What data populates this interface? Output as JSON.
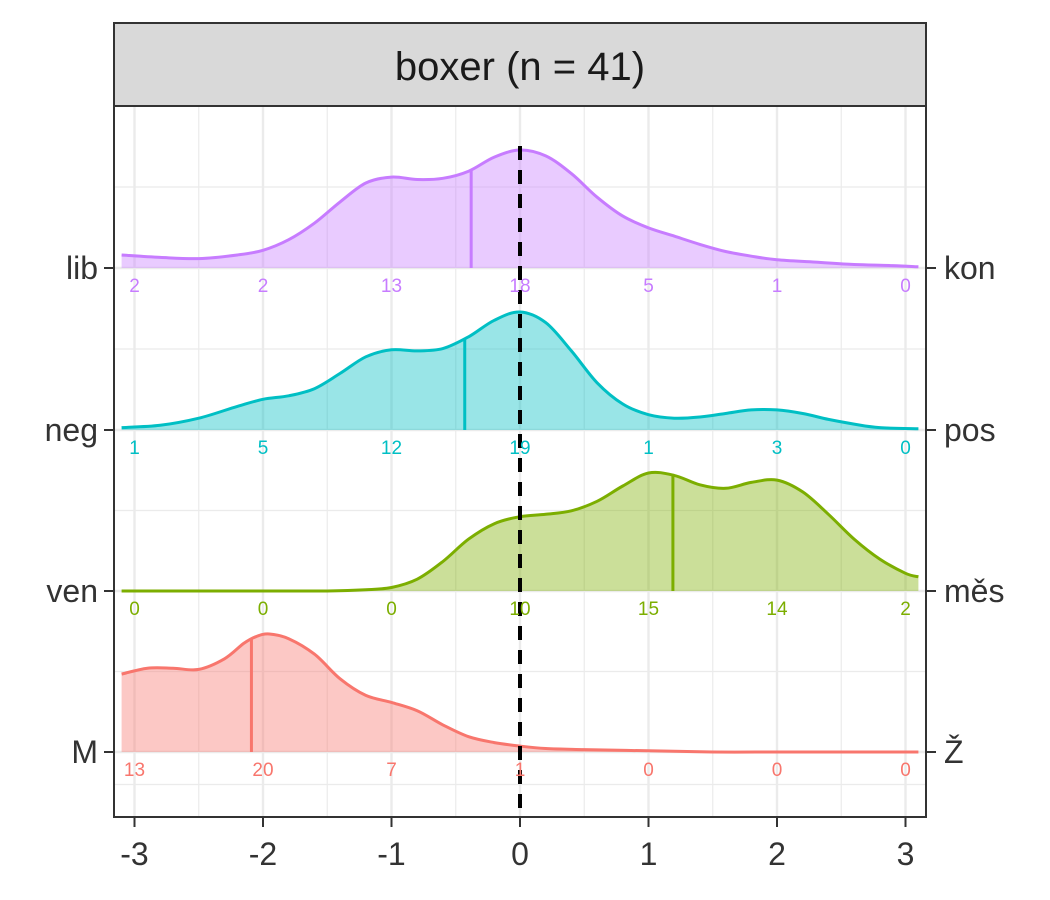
{
  "chart_data": {
    "type": "ridgeline",
    "title": "boxer (n = 41)",
    "xlabel": "",
    "ylabel": "",
    "xlim": [
      -3.1,
      3.1
    ],
    "x_ticks": [
      -3,
      -2,
      -1,
      0,
      1,
      2,
      3
    ],
    "x_tick_labels": [
      "-3",
      "-2",
      "-1",
      "0",
      "1",
      "2",
      "3"
    ],
    "reference_line_x": 0,
    "grid": true,
    "count_positions": [
      -3,
      -2,
      -1,
      0,
      1,
      2,
      3
    ],
    "rows": [
      {
        "left_label": "lib",
        "right_label": "kon",
        "color": "#C77CFF",
        "mean": -0.38,
        "counts": [
          "2",
          "2",
          "13",
          "18",
          "5",
          "1",
          "0"
        ],
        "density_x": [
          -3.1,
          -2.8,
          -2.5,
          -2.2,
          -2.0,
          -1.8,
          -1.6,
          -1.4,
          -1.2,
          -1.0,
          -0.8,
          -0.6,
          -0.4,
          -0.2,
          0.0,
          0.2,
          0.4,
          0.6,
          0.8,
          1.0,
          1.2,
          1.4,
          1.6,
          1.8,
          2.0,
          2.3,
          2.6,
          2.9,
          3.1
        ],
        "density_y": [
          0.11,
          0.09,
          0.08,
          0.11,
          0.15,
          0.24,
          0.38,
          0.56,
          0.72,
          0.77,
          0.75,
          0.76,
          0.82,
          0.94,
          1.0,
          0.95,
          0.8,
          0.6,
          0.44,
          0.34,
          0.27,
          0.2,
          0.14,
          0.1,
          0.07,
          0.05,
          0.03,
          0.02,
          0.01
        ]
      },
      {
        "left_label": "neg",
        "right_label": "pos",
        "color": "#00BFC4",
        "mean": -0.43,
        "counts": [
          "1",
          "5",
          "12",
          "19",
          "1",
          "3",
          "0"
        ],
        "density_x": [
          -3.1,
          -2.8,
          -2.5,
          -2.2,
          -2.0,
          -1.8,
          -1.6,
          -1.4,
          -1.2,
          -1.0,
          -0.8,
          -0.6,
          -0.4,
          -0.2,
          0.0,
          0.2,
          0.4,
          0.6,
          0.8,
          1.0,
          1.2,
          1.4,
          1.6,
          1.8,
          2.0,
          2.2,
          2.4,
          2.6,
          2.8,
          3.1
        ],
        "density_y": [
          0.02,
          0.04,
          0.1,
          0.2,
          0.26,
          0.29,
          0.35,
          0.48,
          0.62,
          0.68,
          0.67,
          0.69,
          0.79,
          0.93,
          1.0,
          0.91,
          0.67,
          0.4,
          0.22,
          0.13,
          0.1,
          0.11,
          0.14,
          0.17,
          0.17,
          0.14,
          0.09,
          0.05,
          0.02,
          0.01
        ]
      },
      {
        "left_label": "ven",
        "right_label": "měs",
        "color": "#7CAE00",
        "mean": 1.19,
        "counts": [
          "0",
          "0",
          "0",
          "10",
          "15",
          "14",
          "2"
        ],
        "density_x": [
          -3.1,
          -2.5,
          -2.0,
          -1.5,
          -1.2,
          -1.0,
          -0.8,
          -0.6,
          -0.4,
          -0.2,
          0.0,
          0.2,
          0.4,
          0.6,
          0.8,
          1.0,
          1.2,
          1.4,
          1.6,
          1.8,
          2.0,
          2.2,
          2.4,
          2.6,
          2.8,
          3.0,
          3.1
        ],
        "density_y": [
          0.0,
          0.0,
          0.0,
          0.0,
          0.01,
          0.03,
          0.1,
          0.25,
          0.44,
          0.57,
          0.63,
          0.65,
          0.68,
          0.76,
          0.89,
          1.0,
          0.98,
          0.9,
          0.87,
          0.92,
          0.94,
          0.84,
          0.65,
          0.44,
          0.27,
          0.15,
          0.12
        ]
      },
      {
        "left_label": "M",
        "right_label": "Ž",
        "color": "#F8766D",
        "mean": -2.09,
        "counts": [
          "13",
          "20",
          "7",
          "1",
          "0",
          "0",
          "0"
        ],
        "density_x": [
          -3.1,
          -2.9,
          -2.7,
          -2.5,
          -2.3,
          -2.15,
          -2.05,
          -1.95,
          -1.8,
          -1.6,
          -1.4,
          -1.2,
          -1.0,
          -0.8,
          -0.6,
          -0.4,
          -0.2,
          0.0,
          0.2,
          0.5,
          1.0,
          1.5,
          2.0,
          2.5,
          3.1
        ],
        "density_y": [
          0.66,
          0.71,
          0.71,
          0.7,
          0.79,
          0.92,
          0.98,
          1.0,
          0.96,
          0.83,
          0.62,
          0.48,
          0.42,
          0.35,
          0.23,
          0.13,
          0.08,
          0.05,
          0.03,
          0.02,
          0.01,
          0.0,
          0.0,
          0.0,
          0.0
        ]
      }
    ]
  }
}
